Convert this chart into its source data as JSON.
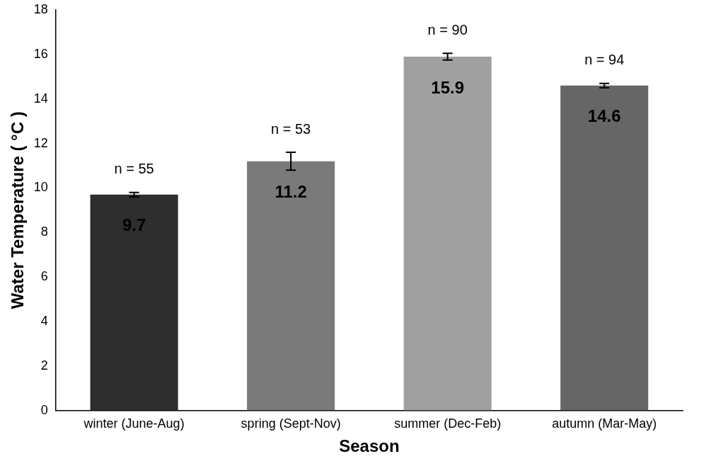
{
  "chart_data": {
    "type": "bar",
    "xlabel": "Season",
    "ylabel": "Water Temperature ( °C )",
    "categories": [
      "winter (June-Aug)",
      "spring (Sept-Nov)",
      "summer (Dec-Feb)",
      "autumn (Mar-May)"
    ],
    "values": [
      9.7,
      11.2,
      15.9,
      14.6
    ],
    "errors": [
      0.1,
      0.4,
      0.15,
      0.1
    ],
    "colors": [
      "#2e2e2e",
      "#7a7a7a",
      "#a0a0a0",
      "#666666"
    ],
    "data_labels": true,
    "ylim": [
      0,
      18
    ],
    "yticks": [
      0,
      2,
      4,
      6,
      8,
      10,
      12,
      14,
      16,
      18
    ],
    "grid": false,
    "legend": false,
    "annotations": [
      "n = 55",
      "n = 53",
      "n = 90",
      "n = 94"
    ]
  }
}
